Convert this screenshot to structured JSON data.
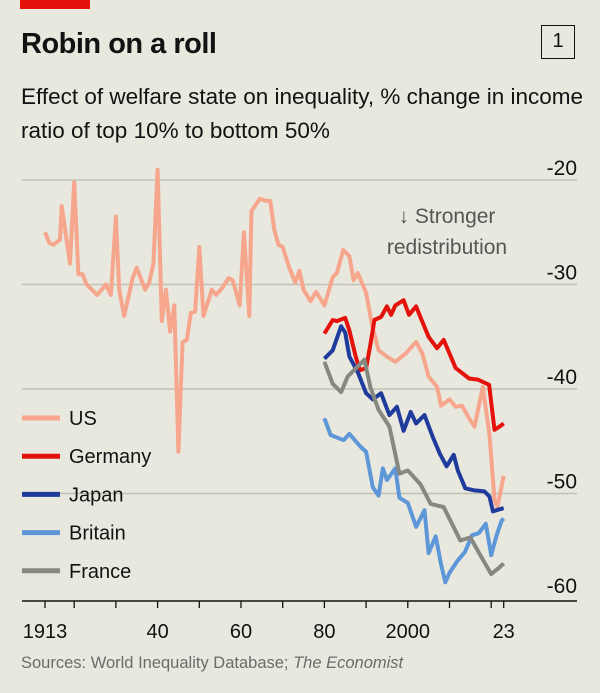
{
  "header": {
    "title": "Robin on a roll",
    "chart_number": "1",
    "subtitle": "Effect of welfare state on inequality, % change in income ratio of top 10% to bottom 50%"
  },
  "source": {
    "prefix": "Sources: World Inequality Database; ",
    "italic": "The Economist"
  },
  "chart_data": {
    "type": "line",
    "title": "Robin on a roll",
    "subtitle": "Effect of welfare state on inequality, % change in income ratio of top 10% to bottom 50%",
    "xlim": [
      1913,
      2023
    ],
    "ylim": [
      -60,
      -20
    ],
    "y_ticks": [
      -20,
      -30,
      -40,
      -50,
      -60
    ],
    "x_ticks": [
      1913,
      1920,
      1930,
      1940,
      1950,
      1960,
      1970,
      1980,
      1990,
      2000,
      2010,
      2020,
      2023
    ],
    "x_tick_labels": [
      {
        "x": 1913,
        "label": "1913"
      },
      {
        "x": 1940,
        "label": "40"
      },
      {
        "x": 1960,
        "label": "60"
      },
      {
        "x": 1980,
        "label": "80"
      },
      {
        "x": 2000,
        "label": "2000"
      },
      {
        "x": 2023,
        "label": "23"
      }
    ],
    "grid": true,
    "y_axis_side": "right",
    "legend_placement": "left",
    "annotation": {
      "arrow": "↓",
      "line1": "Stronger",
      "line2": "redistribution"
    },
    "series": [
      {
        "name": "US",
        "color": "#f6a68c",
        "points": [
          [
            1913,
            -25
          ],
          [
            1914,
            -26
          ],
          [
            1915,
            -26.2
          ],
          [
            1916.6,
            -25.7
          ],
          [
            1917,
            -22.5
          ],
          [
            1919,
            -28
          ],
          [
            1920,
            -20.2
          ],
          [
            1921,
            -29
          ],
          [
            1922,
            -29
          ],
          [
            1923,
            -30
          ],
          [
            1925.5,
            -31
          ],
          [
            1927.6,
            -30
          ],
          [
            1928.8,
            -31
          ],
          [
            1930,
            -23.5
          ],
          [
            1930.8,
            -30.5
          ],
          [
            1932,
            -33
          ],
          [
            1934,
            -29.4
          ],
          [
            1935,
            -28.4
          ],
          [
            1937,
            -30.5
          ],
          [
            1938,
            -29.8
          ],
          [
            1939,
            -28
          ],
          [
            1940,
            -19
          ],
          [
            1941,
            -33.5
          ],
          [
            1942,
            -30.5
          ],
          [
            1943,
            -34.5
          ],
          [
            1944,
            -32
          ],
          [
            1945,
            -46
          ],
          [
            1946,
            -35.5
          ],
          [
            1947,
            -35.3
          ],
          [
            1948,
            -32.7
          ],
          [
            1949,
            -32.6
          ],
          [
            1950,
            -26.4
          ],
          [
            1951,
            -33
          ],
          [
            1953,
            -30.5
          ],
          [
            1954,
            -31
          ],
          [
            1955.6,
            -30.3
          ],
          [
            1957,
            -29.4
          ],
          [
            1958,
            -29.6
          ],
          [
            1959.7,
            -32
          ],
          [
            1960.7,
            -25
          ],
          [
            1962,
            -33
          ],
          [
            1962.5,
            -23
          ],
          [
            1964.5,
            -21.8
          ],
          [
            1966,
            -22
          ],
          [
            1967,
            -22
          ],
          [
            1968,
            -24.8
          ],
          [
            1969,
            -26.2
          ],
          [
            1970,
            -26.4
          ],
          [
            1971.5,
            -28.3
          ],
          [
            1973,
            -29.8
          ],
          [
            1974,
            -28.7
          ],
          [
            1975,
            -30.5
          ],
          [
            1976.7,
            -31.6
          ],
          [
            1978,
            -30.7
          ],
          [
            1980,
            -32
          ],
          [
            1982,
            -29.3
          ],
          [
            1983,
            -28.9
          ],
          [
            1984.5,
            -26.7
          ],
          [
            1986,
            -27.3
          ],
          [
            1987,
            -29.6
          ],
          [
            1988,
            -28.9
          ],
          [
            1990,
            -30.8
          ],
          [
            1991.5,
            -34
          ],
          [
            1993,
            -36.3
          ],
          [
            1995,
            -36.9
          ],
          [
            1997,
            -37.4
          ],
          [
            1999.5,
            -36.6
          ],
          [
            2002,
            -35.5
          ],
          [
            2003.5,
            -36.6
          ],
          [
            2005,
            -38.8
          ],
          [
            2007,
            -39.8
          ],
          [
            2008,
            -41.6
          ],
          [
            2010,
            -41
          ],
          [
            2011.5,
            -41.7
          ],
          [
            2013,
            -41.6
          ],
          [
            2014.7,
            -42.8
          ],
          [
            2016,
            -43.6
          ],
          [
            2018,
            -39.8
          ],
          [
            2019.6,
            -44.4
          ],
          [
            2020.8,
            -50.6
          ],
          [
            2021.5,
            -51.3
          ],
          [
            2023,
            -48.3
          ]
        ]
      },
      {
        "name": "Germany",
        "color": "#e3120b",
        "points": [
          [
            1980,
            -34.7
          ],
          [
            1982,
            -33.4
          ],
          [
            1983,
            -33.5
          ],
          [
            1985,
            -33.2
          ],
          [
            1986,
            -34.4
          ],
          [
            1987.5,
            -36.9
          ],
          [
            1988.5,
            -38.2
          ],
          [
            1990,
            -38
          ],
          [
            1991,
            -35.8
          ],
          [
            1992,
            -33.4
          ],
          [
            1993.6,
            -33.1
          ],
          [
            1995,
            -32.1
          ],
          [
            1996,
            -32.9
          ],
          [
            1997,
            -32
          ],
          [
            1999,
            -31.5
          ],
          [
            2000.3,
            -32.9
          ],
          [
            2002,
            -32.1
          ],
          [
            2003,
            -33.1
          ],
          [
            2005,
            -35
          ],
          [
            2007,
            -36.1
          ],
          [
            2008.6,
            -35.3
          ],
          [
            2011.5,
            -38
          ],
          [
            2014.7,
            -39
          ],
          [
            2016.8,
            -39.1
          ],
          [
            2019.5,
            -39.6
          ],
          [
            2020.8,
            -43.9
          ],
          [
            2022,
            -43.6
          ],
          [
            2023,
            -43.3
          ]
        ]
      },
      {
        "name": "Japan",
        "color": "#1f3c9c",
        "points": [
          [
            1980,
            -37.1
          ],
          [
            1982,
            -36.3
          ],
          [
            1984,
            -34
          ],
          [
            1985,
            -34.6
          ],
          [
            1986,
            -36.9
          ],
          [
            1988,
            -38.4
          ],
          [
            1990,
            -40.4
          ],
          [
            1991.6,
            -41
          ],
          [
            1993.6,
            -40.4
          ],
          [
            1995.6,
            -42.5
          ],
          [
            1997.4,
            -41.7
          ],
          [
            1999,
            -44
          ],
          [
            2000.7,
            -42.2
          ],
          [
            2002,
            -43.3
          ],
          [
            2004,
            -42.5
          ],
          [
            2006,
            -44.6
          ],
          [
            2007.7,
            -46.2
          ],
          [
            2009.3,
            -47.4
          ],
          [
            2011,
            -46.3
          ],
          [
            2012,
            -47.8
          ],
          [
            2013.8,
            -49.5
          ],
          [
            2016,
            -49.7
          ],
          [
            2018.4,
            -49.8
          ],
          [
            2019.6,
            -50.3
          ],
          [
            2020.4,
            -51.7
          ],
          [
            2023,
            -51.4
          ]
        ]
      },
      {
        "name": "Britain",
        "color": "#5e97d8",
        "points": [
          [
            1980,
            -42.8
          ],
          [
            1981.5,
            -44.4
          ],
          [
            1984.6,
            -44.9
          ],
          [
            1986,
            -44.3
          ],
          [
            1988.6,
            -45.5
          ],
          [
            1990,
            -46
          ],
          [
            1991.6,
            -49.4
          ],
          [
            1993,
            -50.2
          ],
          [
            1994,
            -47.6
          ],
          [
            1995,
            -48.7
          ],
          [
            1997,
            -47.6
          ],
          [
            1998,
            -50.4
          ],
          [
            2000,
            -50.9
          ],
          [
            2002,
            -53.2
          ],
          [
            2004,
            -51.6
          ],
          [
            2005,
            -55.7
          ],
          [
            2006.7,
            -54.1
          ],
          [
            2008,
            -56.8
          ],
          [
            2009,
            -58.5
          ],
          [
            2010,
            -57.6
          ],
          [
            2012,
            -56.4
          ],
          [
            2013.7,
            -55.6
          ],
          [
            2015.4,
            -54
          ],
          [
            2017,
            -53.8
          ],
          [
            2018.7,
            -52.9
          ],
          [
            2020,
            -55.9
          ],
          [
            2021.3,
            -54
          ],
          [
            2022.5,
            -52.6
          ],
          [
            2023,
            -52.4
          ]
        ]
      },
      {
        "name": "France",
        "color": "#868882",
        "points": [
          [
            1980,
            -37.4
          ],
          [
            1982,
            -39.5
          ],
          [
            1984,
            -40.3
          ],
          [
            1985.6,
            -38.8
          ],
          [
            1987.6,
            -38
          ],
          [
            1989.6,
            -37.2
          ],
          [
            1991,
            -39.8
          ],
          [
            1993,
            -42
          ],
          [
            1995.6,
            -43.6
          ],
          [
            1998,
            -48.1
          ],
          [
            2000,
            -47.8
          ],
          [
            2003,
            -49.1
          ],
          [
            2005.5,
            -51
          ],
          [
            2008.6,
            -51.3
          ],
          [
            2010.6,
            -52.9
          ],
          [
            2012.6,
            -54.5
          ],
          [
            2015,
            -54.2
          ],
          [
            2017.4,
            -55.9
          ],
          [
            2020,
            -57.7
          ],
          [
            2021.6,
            -57.2
          ],
          [
            2023,
            -56.7
          ]
        ]
      }
    ]
  }
}
